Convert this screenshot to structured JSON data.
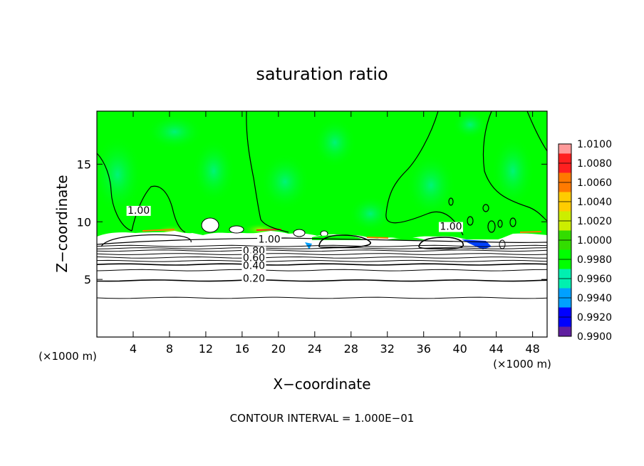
{
  "chart_data": {
    "type": "heatmap",
    "title": "saturation ratio",
    "xlabel": "X−coordinate",
    "ylabel": "Z−coordinate",
    "x_unit_label_left": "(×1000 m)",
    "x_unit_label_right": "(×1000 m)",
    "xlim": [
      0,
      49.6
    ],
    "ylim": [
      0,
      19.6
    ],
    "x_ticks": [
      4,
      8,
      12,
      16,
      20,
      24,
      28,
      32,
      36,
      40,
      44,
      48
    ],
    "y_ticks": [
      5,
      10,
      15
    ],
    "footer": "CONTOUR INTERVAL = 1.000E−01",
    "colorbar": {
      "levels": [
        "1.0100",
        "1.0080",
        "1.0060",
        "1.0040",
        "1.0020",
        "1.0000",
        "0.9980",
        "0.9960",
        "0.9940",
        "0.9920",
        "0.9900"
      ],
      "colors": [
        "#ff9a9a",
        "#ff2020",
        "#ff7a00",
        "#ffcc00",
        "#ccee00",
        "#33dd00",
        "#00ff00",
        "#00f0b0",
        "#00a0ff",
        "#0000ff",
        "#6020a0"
      ]
    },
    "contour_labels": [
      {
        "text": "1.00",
        "x": 4.6,
        "z": 10.7
      },
      {
        "text": "1.00",
        "x": 19.0,
        "z": 8.2
      },
      {
        "text": "0.80",
        "x": 17.3,
        "z": 7.2
      },
      {
        "text": "0.60",
        "x": 17.3,
        "z": 6.6
      },
      {
        "text": "0.40",
        "x": 17.3,
        "z": 5.9
      },
      {
        "text": "0.20",
        "x": 17.3,
        "z": 4.8
      },
      {
        "text": "1.00",
        "x": 39.0,
        "z": 9.3
      }
    ],
    "contour_levels_z": [
      3.4,
      4.9,
      5.8,
      6.3,
      6.6,
      6.9,
      7.2,
      7.5,
      7.7,
      7.9
    ]
  }
}
